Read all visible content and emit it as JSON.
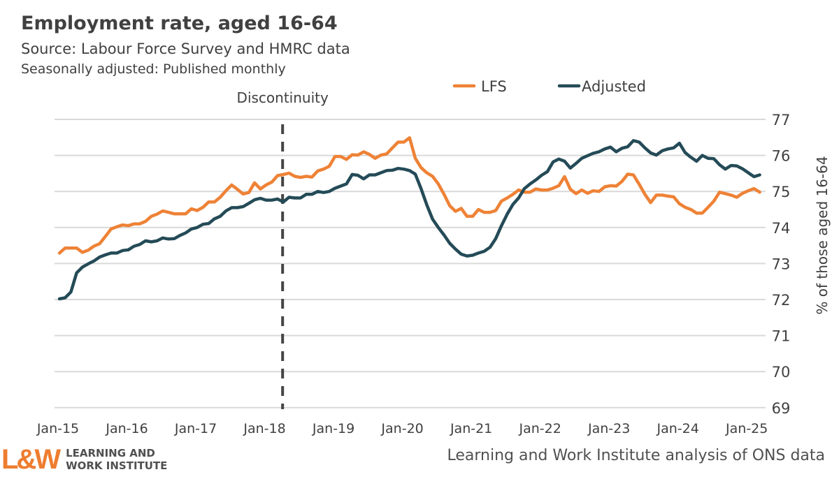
{
  "header": {
    "title": "Employment rate, aged 16-64",
    "source": "Source: Labour Force Survey and HMRC data",
    "note": "Seasonally adjusted: Published monthly"
  },
  "footer": {
    "credit": "Learning and Work Institute analysis of ONS data",
    "logo_mark": "L&W",
    "logo_text_line1": "LEARNING AND",
    "logo_text_line2": "WORK INSTITUTE"
  },
  "chart_data": {
    "type": "line",
    "title": "Employment rate, aged 16-64",
    "xlabel": "",
    "ylabel": "% of those aged 16-64",
    "ylim": [
      69,
      77
    ],
    "yticks": [
      "69",
      "70",
      "71",
      "72",
      "73",
      "74",
      "75",
      "76",
      "77"
    ],
    "y_axis_side": "right",
    "xticks": [
      "Jan-15",
      "Jan-16",
      "Jan-17",
      "Jan-18",
      "Jan-19",
      "Jan-20",
      "Jan-21",
      "Jan-22",
      "Jan-23",
      "Jan-24",
      "Jan-25"
    ],
    "grid": "horizontal",
    "legend_position": "top-right",
    "annotation": {
      "label": "Discontinuity",
      "at": "2018-04",
      "style": "dashed"
    },
    "colors": {
      "LFS": "#EE8236",
      "Adjusted": "#244B57",
      "annotation": "#444444"
    },
    "x": [
      "2015-01",
      "2015-02",
      "2015-03",
      "2015-04",
      "2015-05",
      "2015-06",
      "2015-07",
      "2015-08",
      "2015-09",
      "2015-10",
      "2015-11",
      "2015-12",
      "2016-01",
      "2016-02",
      "2016-03",
      "2016-04",
      "2016-05",
      "2016-06",
      "2016-07",
      "2016-08",
      "2016-09",
      "2016-10",
      "2016-11",
      "2016-12",
      "2017-01",
      "2017-02",
      "2017-03",
      "2017-04",
      "2017-05",
      "2017-06",
      "2017-07",
      "2017-08",
      "2017-09",
      "2017-10",
      "2017-11",
      "2017-12",
      "2018-01",
      "2018-02",
      "2018-03",
      "2018-04",
      "2018-05",
      "2018-06",
      "2018-07",
      "2018-08",
      "2018-09",
      "2018-10",
      "2018-11",
      "2018-12",
      "2019-01",
      "2019-02",
      "2019-03",
      "2019-04",
      "2019-05",
      "2019-06",
      "2019-07",
      "2019-08",
      "2019-09",
      "2019-10",
      "2019-11",
      "2019-12",
      "2020-01",
      "2020-02",
      "2020-03",
      "2020-04",
      "2020-05",
      "2020-06",
      "2020-07",
      "2020-08",
      "2020-09",
      "2020-10",
      "2020-11",
      "2020-12",
      "2021-01",
      "2021-02",
      "2021-03",
      "2021-04",
      "2021-05",
      "2021-06",
      "2021-07",
      "2021-08",
      "2021-09",
      "2021-10",
      "2021-11",
      "2021-12",
      "2022-01",
      "2022-02",
      "2022-03",
      "2022-04",
      "2022-05",
      "2022-06",
      "2022-07",
      "2022-08",
      "2022-09",
      "2022-10",
      "2022-11",
      "2022-12",
      "2023-01",
      "2023-02",
      "2023-03",
      "2023-04",
      "2023-05",
      "2023-06",
      "2023-07",
      "2023-08",
      "2023-09",
      "2023-10",
      "2023-11",
      "2023-12",
      "2024-01",
      "2024-02",
      "2024-03",
      "2024-04",
      "2024-05",
      "2024-06",
      "2024-07",
      "2024-08",
      "2024-09",
      "2024-10",
      "2024-11",
      "2024-12",
      "2025-01",
      "2025-02",
      "2025-03"
    ],
    "series": [
      {
        "name": "LFS",
        "values": [
          73.29,
          73.43,
          73.43,
          73.43,
          73.31,
          73.37,
          73.48,
          73.55,
          73.75,
          73.96,
          74.02,
          74.07,
          74.05,
          74.1,
          74.1,
          74.17,
          74.31,
          74.37,
          74.46,
          74.42,
          74.38,
          74.38,
          74.38,
          74.52,
          74.47,
          74.56,
          74.71,
          74.71,
          74.84,
          75.02,
          75.18,
          75.06,
          74.93,
          74.97,
          75.24,
          75.07,
          75.18,
          75.26,
          75.44,
          75.47,
          75.51,
          75.42,
          75.39,
          75.42,
          75.4,
          75.57,
          75.62,
          75.7,
          75.97,
          75.97,
          75.89,
          76.02,
          76.01,
          76.1,
          76.03,
          75.92,
          76.01,
          76.04,
          76.21,
          76.37,
          76.37,
          76.49,
          75.92,
          75.66,
          75.52,
          75.42,
          75.21,
          74.92,
          74.6,
          74.45,
          74.53,
          74.31,
          74.31,
          74.5,
          74.42,
          74.42,
          74.47,
          74.73,
          74.82,
          74.92,
          75.04,
          74.98,
          74.98,
          75.07,
          75.04,
          75.04,
          75.09,
          75.16,
          75.41,
          75.06,
          74.94,
          75.04,
          74.95,
          75.02,
          75.0,
          75.13,
          75.16,
          75.15,
          75.28,
          75.48,
          75.46,
          75.2,
          74.92,
          74.69,
          74.9,
          74.9,
          74.87,
          74.85,
          74.66,
          74.56,
          74.5,
          74.4,
          74.4,
          74.56,
          74.73,
          74.98,
          74.94,
          74.9,
          74.84,
          74.95,
          75.02,
          75.08,
          74.98
        ]
      },
      {
        "name": "Adjusted",
        "values": [
          72.02,
          72.05,
          72.21,
          72.74,
          72.9,
          72.99,
          73.07,
          73.18,
          73.24,
          73.29,
          73.29,
          73.36,
          73.38,
          73.48,
          73.53,
          73.63,
          73.6,
          73.63,
          73.71,
          73.68,
          73.69,
          73.78,
          73.85,
          73.96,
          74.0,
          74.09,
          74.11,
          74.24,
          74.31,
          74.46,
          74.55,
          74.55,
          74.58,
          74.67,
          74.77,
          74.81,
          74.76,
          74.76,
          74.79,
          74.71,
          74.84,
          74.82,
          74.82,
          74.92,
          74.92,
          75.0,
          74.97,
          75.0,
          75.09,
          75.15,
          75.21,
          75.47,
          75.45,
          75.35,
          75.46,
          75.46,
          75.52,
          75.58,
          75.59,
          75.64,
          75.62,
          75.58,
          75.48,
          75.08,
          74.63,
          74.23,
          74.0,
          73.79,
          73.56,
          73.4,
          73.26,
          73.21,
          73.23,
          73.29,
          73.34,
          73.45,
          73.69,
          74.05,
          74.37,
          74.64,
          74.82,
          75.08,
          75.21,
          75.32,
          75.45,
          75.55,
          75.82,
          75.9,
          75.84,
          75.65,
          75.78,
          75.92,
          75.99,
          76.06,
          76.1,
          76.18,
          76.23,
          76.1,
          76.2,
          76.24,
          76.41,
          76.37,
          76.21,
          76.07,
          76.01,
          76.13,
          76.18,
          76.21,
          76.34,
          76.08,
          75.95,
          75.84,
          76.0,
          75.92,
          75.91,
          75.74,
          75.62,
          75.72,
          75.71,
          75.63,
          75.52,
          75.41,
          75.46
        ]
      }
    ]
  }
}
